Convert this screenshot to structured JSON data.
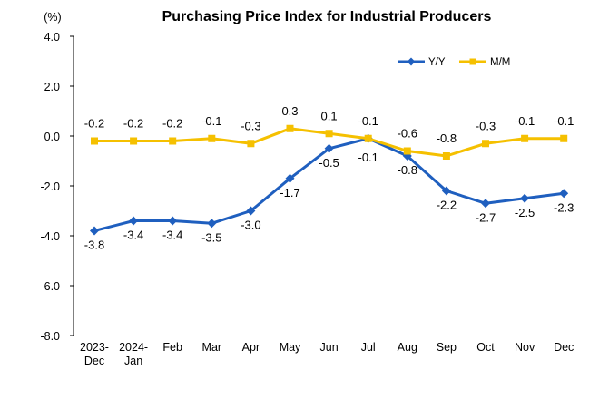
{
  "chart_data": {
    "type": "line",
    "title": "Purchasing Price Index for Industrial Producers",
    "ylabel": "(%)",
    "xlabel": "",
    "categories": [
      [
        "2023-",
        "Dec"
      ],
      [
        "2024-",
        "Jan"
      ],
      [
        "Feb"
      ],
      [
        "Mar"
      ],
      [
        "Apr"
      ],
      [
        "May"
      ],
      [
        "Jun"
      ],
      [
        "Jul"
      ],
      [
        "Aug"
      ],
      [
        "Sep"
      ],
      [
        "Oct"
      ],
      [
        "Nov"
      ],
      [
        "Dec"
      ]
    ],
    "ylim": [
      -8.0,
      4.0
    ],
    "yticks": [
      "4.0",
      "2.0",
      "0.0",
      "-2.0",
      "-4.0",
      "-6.0",
      "-8.0"
    ],
    "grid": false,
    "legend_position": "top-right",
    "series": [
      {
        "name": "Y/Y",
        "color": "#1f5fbf",
        "marker": "diamond",
        "values": [
          -3.8,
          -3.4,
          -3.4,
          -3.5,
          -3.0,
          -1.7,
          -0.5,
          -0.1,
          -0.8,
          -2.2,
          -2.7,
          -2.5,
          -2.3
        ],
        "labels": [
          "-3.8",
          "-3.4",
          "-3.4",
          "-3.5",
          "-3.0",
          "-1.7",
          "-0.5",
          "-0.1",
          "-0.8",
          "-2.2",
          "-2.7",
          "-2.5",
          "-2.3"
        ]
      },
      {
        "name": "M/M",
        "color": "#f5c000",
        "marker": "square",
        "values": [
          -0.2,
          -0.2,
          -0.2,
          -0.1,
          -0.3,
          0.3,
          0.1,
          -0.1,
          -0.6,
          -0.8,
          -0.3,
          -0.1,
          -0.1
        ],
        "labels": [
          "-0.2",
          "-0.2",
          "-0.2",
          "-0.1",
          "-0.3",
          "0.3",
          "0.1",
          "-0.1",
          "-0.6",
          "-0.8",
          "-0.3",
          "-0.1",
          "-0.1"
        ]
      }
    ]
  }
}
